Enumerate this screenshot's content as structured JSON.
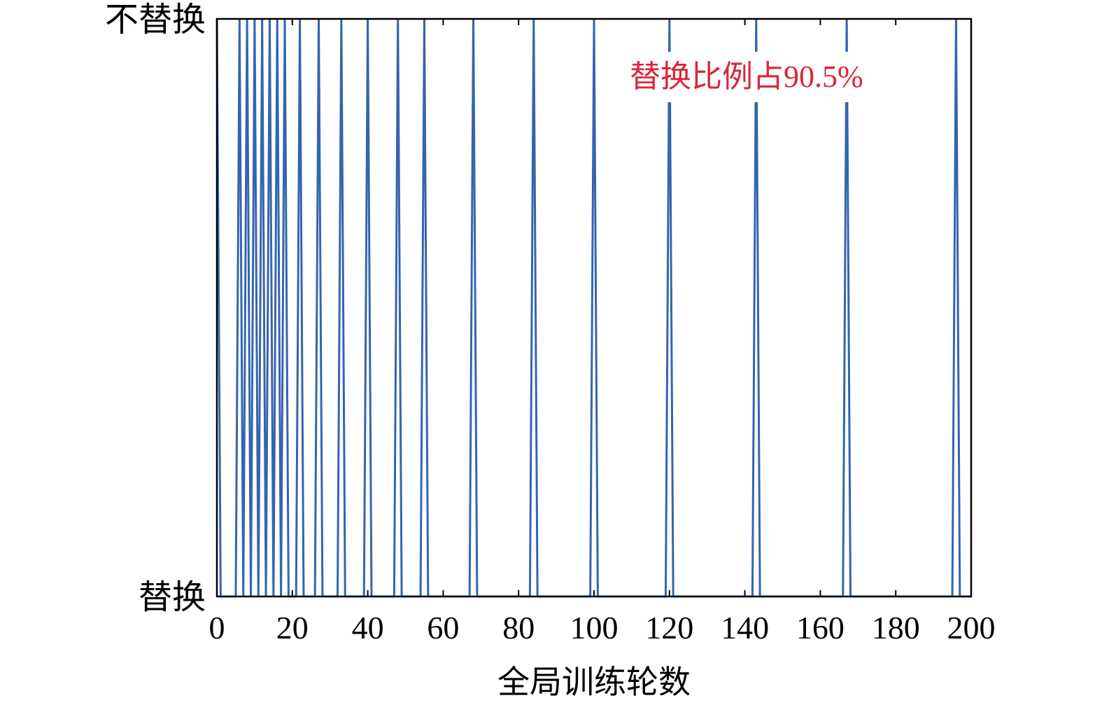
{
  "chart_data": {
    "type": "line",
    "title": "",
    "xlabel": "全局训练轮数",
    "ylabel": "",
    "xlim": [
      0,
      200
    ],
    "ylim": [
      0,
      1
    ],
    "xticks": [
      "0",
      "20",
      "40",
      "60",
      "80",
      "100",
      "120",
      "140",
      "160",
      "180",
      "200"
    ],
    "yticks": [
      {
        "label": "替换",
        "value": 0
      },
      {
        "label": "不替换",
        "value": 1
      }
    ],
    "annotation": "替换比例占90.5%",
    "line_color": "#3465ad",
    "annotation_color": "#d9263a",
    "not_replaced_rounds": [
      6,
      8,
      10,
      12,
      14,
      16,
      18,
      22,
      27,
      33,
      40,
      48,
      55,
      68,
      84,
      100,
      120,
      143,
      167,
      196
    ],
    "grid": false
  }
}
